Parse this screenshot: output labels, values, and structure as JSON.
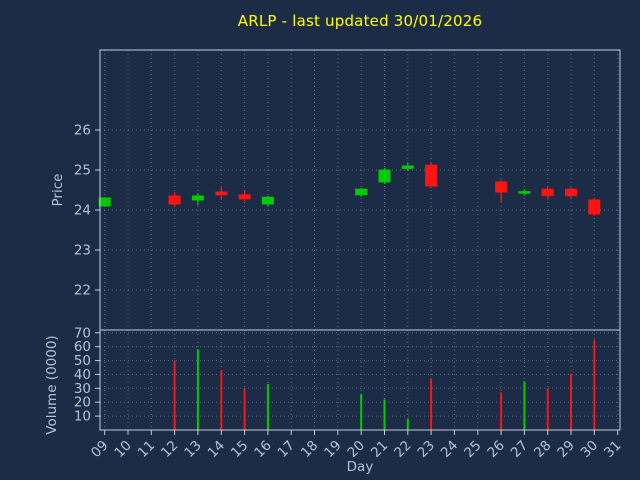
{
  "title": "ARLP - last updated 30/01/2026",
  "colors": {
    "background": "#1c2b46",
    "title": "#ffff00",
    "text": "#b3c1dd",
    "grid": "#8c99b3",
    "frame": "#c6cede",
    "up": "#00cc00",
    "down": "#ff1414"
  },
  "chart_data": {
    "type": "candlestick+volume",
    "title": "ARLP - last updated 30/01/2026",
    "xlabel": "Day",
    "price_ylabel": "Price",
    "volume_ylabel": "Volume (0000)",
    "grid": "dotted",
    "xlim": [
      8.8,
      31.1
    ],
    "price_ylim": [
      21.0,
      28.0
    ],
    "volume_ylim": [
      0,
      72
    ],
    "x_ticks": [
      {
        "value": 9,
        "label": "09"
      },
      {
        "value": 10,
        "label": "10"
      },
      {
        "value": 11,
        "label": "11"
      },
      {
        "value": 12,
        "label": "12"
      },
      {
        "value": 13,
        "label": "13"
      },
      {
        "value": 14,
        "label": "14"
      },
      {
        "value": 15,
        "label": "15"
      },
      {
        "value": 16,
        "label": "16"
      },
      {
        "value": 17,
        "label": "17"
      },
      {
        "value": 18,
        "label": "18"
      },
      {
        "value": 19,
        "label": "19"
      },
      {
        "value": 20,
        "label": "20"
      },
      {
        "value": 21,
        "label": "21"
      },
      {
        "value": 22,
        "label": "22"
      },
      {
        "value": 23,
        "label": "23"
      },
      {
        "value": 24,
        "label": "24"
      },
      {
        "value": 25,
        "label": "25"
      },
      {
        "value": 26,
        "label": "26"
      },
      {
        "value": 27,
        "label": "27"
      },
      {
        "value": 28,
        "label": "28"
      },
      {
        "value": 29,
        "label": "29"
      },
      {
        "value": 30,
        "label": "30"
      },
      {
        "value": 31,
        "label": "31"
      }
    ],
    "price_ticks": [
      22,
      23,
      24,
      25,
      26
    ],
    "volume_ticks": [
      10,
      20,
      30,
      40,
      50,
      60,
      70
    ],
    "candles": [
      {
        "day": 9,
        "open": 24.1,
        "high": 24.32,
        "low": 24.08,
        "close": 24.3,
        "volume": 0
      },
      {
        "day": 12,
        "open": 24.35,
        "high": 24.45,
        "low": 24.1,
        "close": 24.15,
        "volume": 50
      },
      {
        "day": 13,
        "open": 24.25,
        "high": 24.42,
        "low": 24.12,
        "close": 24.35,
        "volume": 58
      },
      {
        "day": 14,
        "open": 24.45,
        "high": 24.6,
        "low": 24.25,
        "close": 24.38,
        "volume": 43
      },
      {
        "day": 15,
        "open": 24.38,
        "high": 24.48,
        "low": 24.22,
        "close": 24.28,
        "volume": 30
      },
      {
        "day": 16,
        "open": 24.15,
        "high": 24.35,
        "low": 24.1,
        "close": 24.32,
        "volume": 33
      },
      {
        "day": 20,
        "open": 24.38,
        "high": 24.55,
        "low": 24.33,
        "close": 24.52,
        "volume": 26
      },
      {
        "day": 21,
        "open": 24.7,
        "high": 25.05,
        "low": 24.65,
        "close": 25.0,
        "volume": 22
      },
      {
        "day": 22,
        "open": 25.04,
        "high": 25.18,
        "low": 24.98,
        "close": 25.1,
        "volume": 8
      },
      {
        "day": 23,
        "open": 25.12,
        "high": 25.18,
        "low": 24.55,
        "close": 24.6,
        "volume": 37
      },
      {
        "day": 26,
        "open": 24.7,
        "high": 24.75,
        "low": 24.2,
        "close": 24.45,
        "volume": 27
      },
      {
        "day": 27,
        "open": 24.42,
        "high": 24.52,
        "low": 24.36,
        "close": 24.46,
        "volume": 35
      },
      {
        "day": 28,
        "open": 24.52,
        "high": 24.58,
        "low": 24.26,
        "close": 24.36,
        "volume": 30
      },
      {
        "day": 29,
        "open": 24.52,
        "high": 24.56,
        "low": 24.3,
        "close": 24.36,
        "volume": 40
      },
      {
        "day": 30,
        "open": 24.25,
        "high": 24.3,
        "low": 23.85,
        "close": 23.9,
        "volume": 65
      }
    ]
  }
}
